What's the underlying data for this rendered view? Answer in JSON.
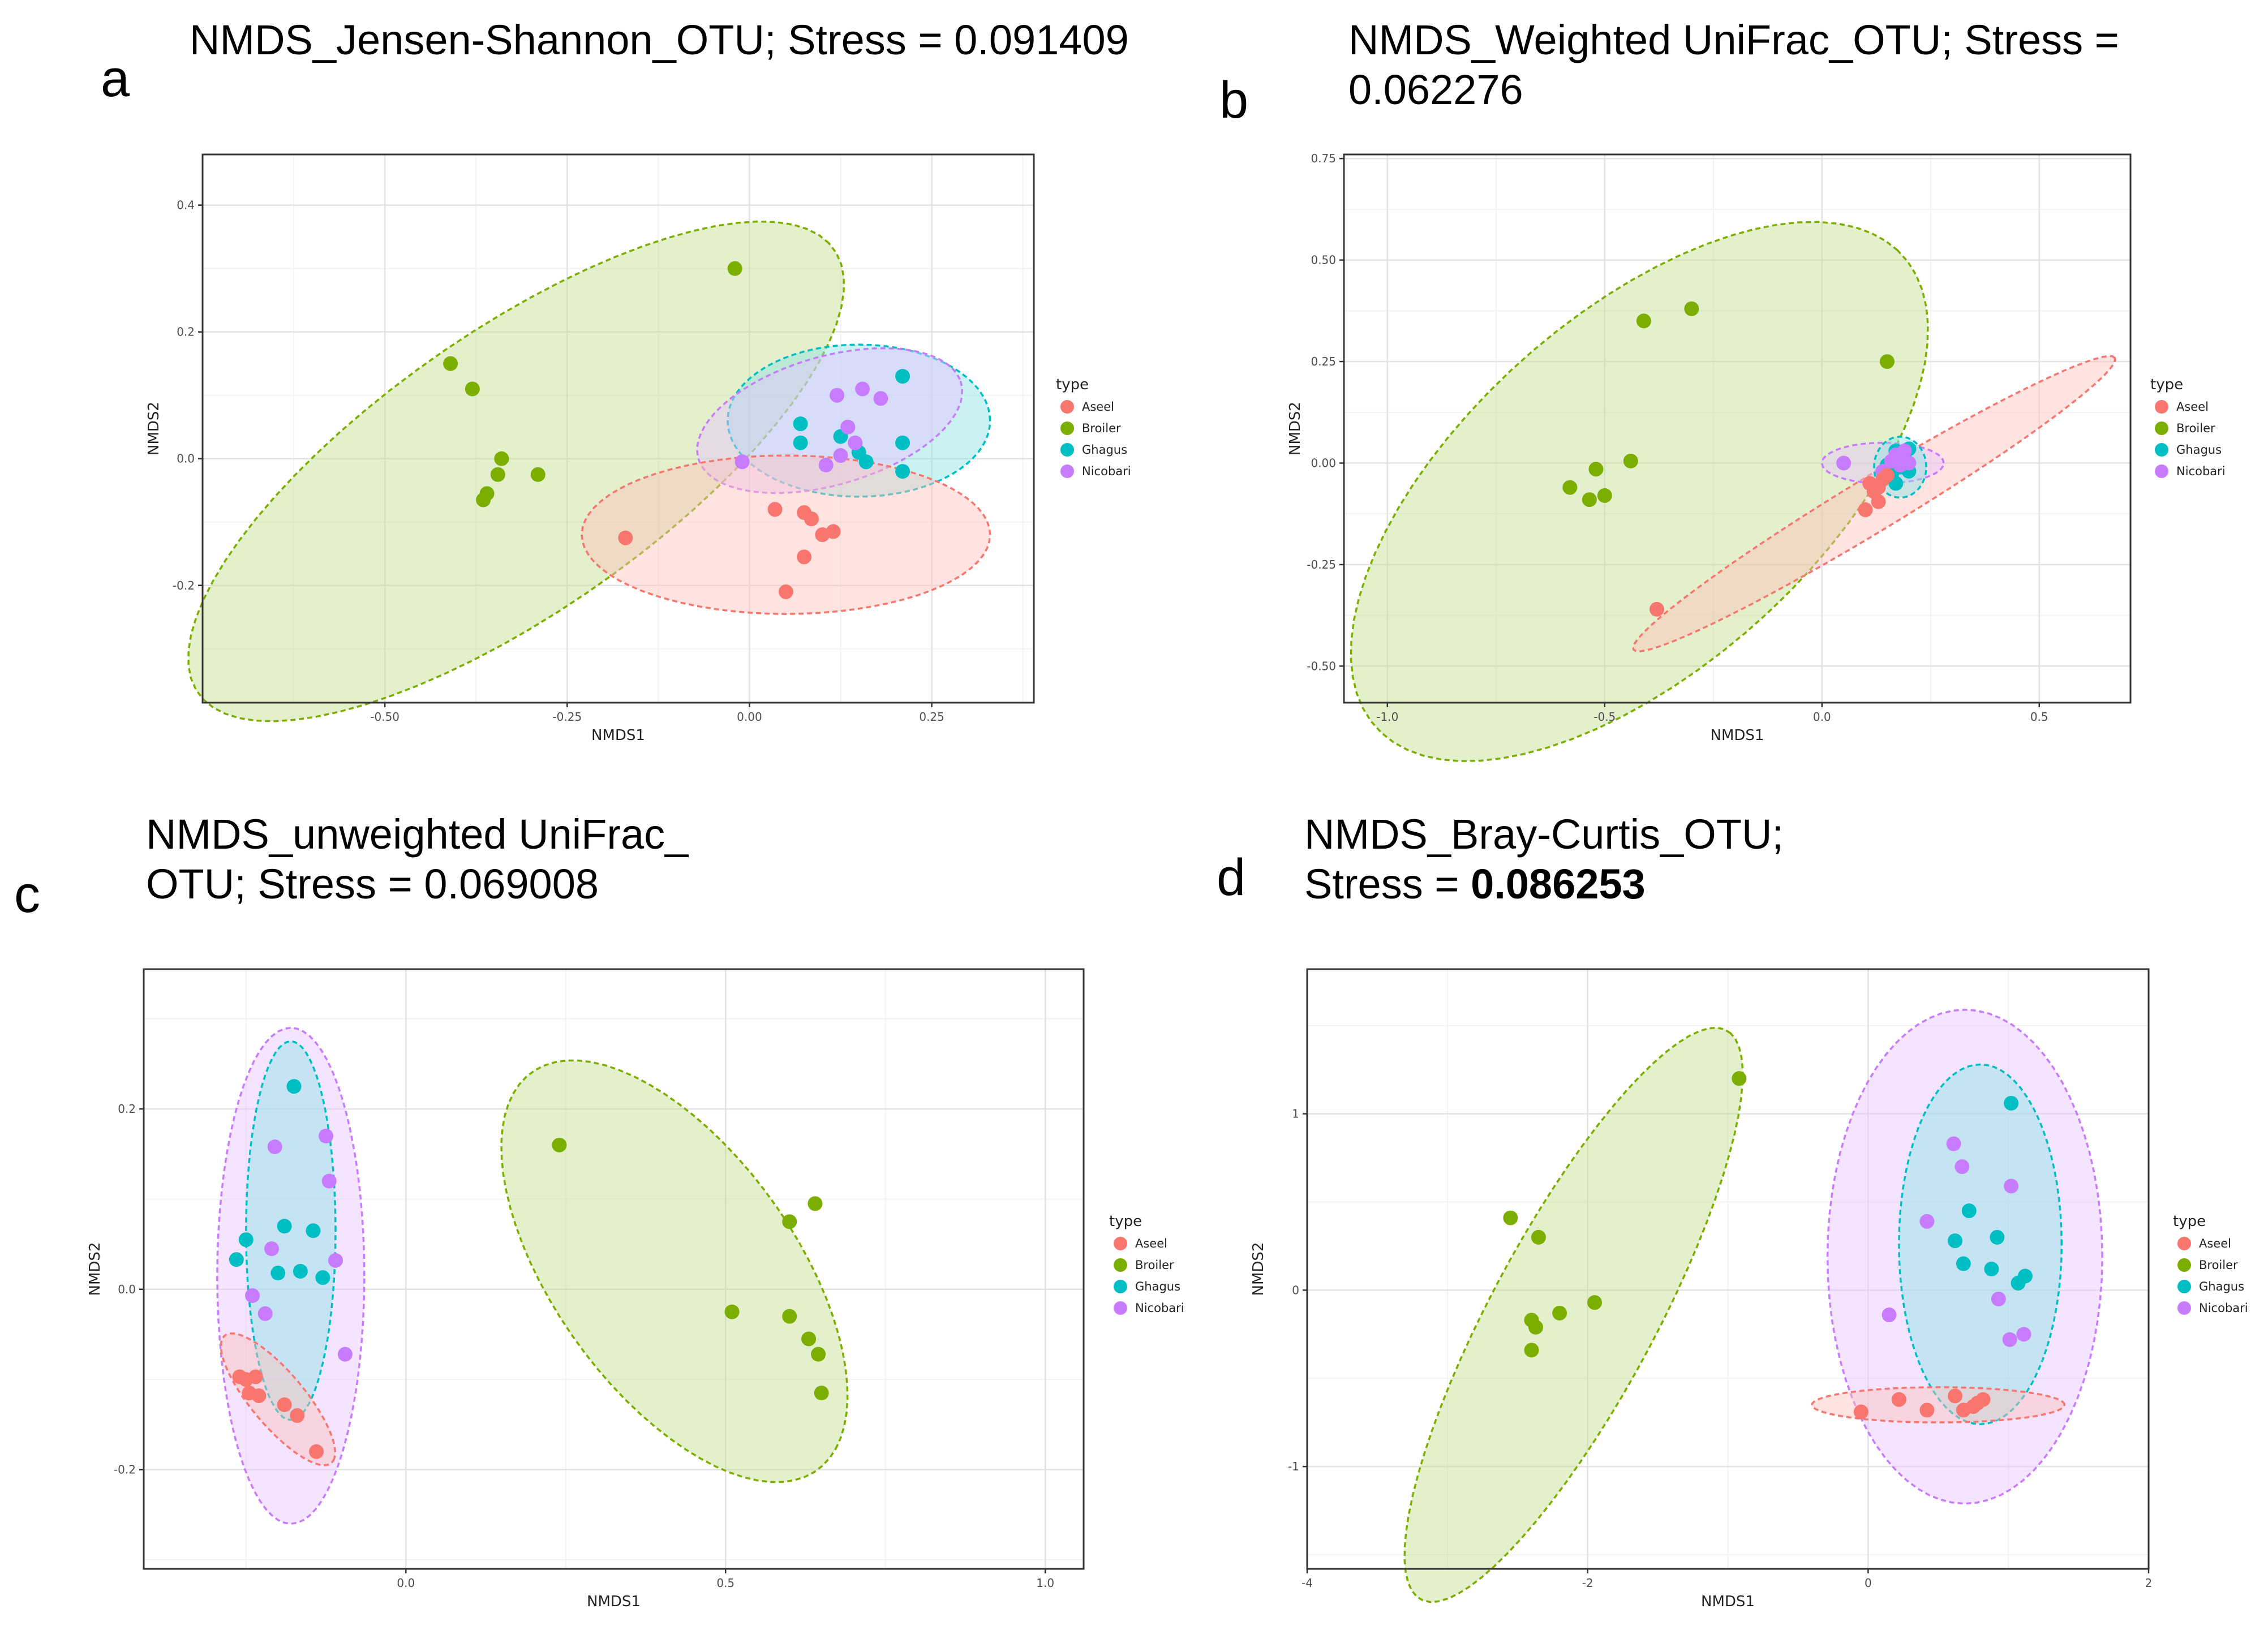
{
  "figure": {
    "panels": [
      {
        "letter": "a",
        "title_lines": [
          "NMDS_Jensen-Shannon_OTU; Stress = 0.091409"
        ],
        "bold_part": ""
      },
      {
        "letter": "b",
        "title_lines": [
          "NMDS_Weighted UniFrac_OTU; Stress =",
          "0.062276"
        ],
        "bold_part": ""
      },
      {
        "letter": "c",
        "title_lines": [
          "NMDS_unweighted UniFrac_",
          "OTU; Stress = 0.069008"
        ],
        "bold_part": ""
      },
      {
        "letter": "d",
        "title_lines": [
          "NMDS_Bray-Curtis_OTU;",
          "Stress = "
        ],
        "bold_part": "0.086253"
      }
    ]
  },
  "colors": {
    "Aseel": "#F8766D",
    "Broiler": "#7CAE00",
    "Ghagus": "#00BFC4",
    "Nicobari": "#C77CFF"
  },
  "chart_data": [
    {
      "type": "scatter",
      "title": "NMDS_Jensen-Shannon_OTU; Stress = 0.091409",
      "xlabel": "NMDS1",
      "ylabel": "NMDS2",
      "xlim": [
        -0.75,
        0.39
      ],
      "ylim": [
        -0.385,
        0.48
      ],
      "xticks": [
        -0.5,
        -0.25,
        0.0,
        0.25
      ],
      "xtick_labels": [
        "-0.50",
        "-0.25",
        "0.00",
        "0.25"
      ],
      "yticks": [
        -0.2,
        0.0,
        0.2,
        0.4
      ],
      "ytick_labels": [
        "-0.2",
        "0.0",
        "0.2",
        "0.4"
      ],
      "legend": {
        "title": "type",
        "entries": [
          "Aseel",
          "Broiler",
          "Ghagus",
          "Nicobari"
        ],
        "position": "right"
      },
      "series": [
        {
          "name": "Broiler",
          "points": [
            [
              -0.02,
              0.3
            ],
            [
              -0.41,
              0.15
            ],
            [
              -0.38,
              0.11
            ],
            [
              -0.34,
              0.0
            ],
            [
              -0.345,
              -0.025
            ],
            [
              -0.29,
              -0.025
            ],
            [
              -0.36,
              -0.055
            ],
            [
              -0.365,
              -0.065
            ]
          ]
        },
        {
          "name": "Ghagus",
          "points": [
            [
              0.21,
              0.13
            ],
            [
              0.07,
              0.055
            ],
            [
              0.125,
              0.035
            ],
            [
              0.07,
              0.025
            ],
            [
              0.21,
              0.025
            ],
            [
              0.15,
              0.01
            ],
            [
              0.16,
              -0.005
            ],
            [
              0.21,
              -0.02
            ]
          ]
        },
        {
          "name": "Nicobari",
          "points": [
            [
              0.12,
              0.1
            ],
            [
              0.155,
              0.11
            ],
            [
              0.18,
              0.095
            ],
            [
              0.135,
              0.05
            ],
            [
              0.145,
              0.025
            ],
            [
              0.125,
              0.005
            ],
            [
              0.105,
              -0.01
            ],
            [
              -0.01,
              -0.005
            ]
          ]
        },
        {
          "name": "Aseel",
          "points": [
            [
              -0.17,
              -0.125
            ],
            [
              0.035,
              -0.08
            ],
            [
              0.075,
              -0.085
            ],
            [
              0.085,
              -0.095
            ],
            [
              0.115,
              -0.115
            ],
            [
              0.1,
              -0.12
            ],
            [
              0.075,
              -0.155
            ],
            [
              0.05,
              -0.21
            ]
          ]
        }
      ],
      "ellipses": [
        {
          "name": "Broiler",
          "center": [
            -0.32,
            -0.02
          ],
          "axes": [
            0.56,
            0.21
          ],
          "angle": 40
        },
        {
          "name": "Ghagus",
          "center": [
            0.15,
            0.06
          ],
          "axes": [
            0.18,
            0.12
          ],
          "angle": 0
        },
        {
          "name": "Nicobari",
          "center": [
            0.11,
            0.06
          ],
          "axes": [
            0.19,
            0.1
          ],
          "angle": 20
        },
        {
          "name": "Aseel",
          "center": [
            0.05,
            -0.12
          ],
          "axes": [
            0.28,
            0.125
          ],
          "angle": 0
        }
      ]
    },
    {
      "type": "scatter",
      "title": "NMDS_Weighted UniFrac_OTU; Stress = 0.062276",
      "xlabel": "NMDS1",
      "ylabel": "NMDS2",
      "xlim": [
        -1.1,
        0.71
      ],
      "ylim": [
        -0.59,
        0.76
      ],
      "xticks": [
        -1.0,
        -0.5,
        0.0,
        0.5
      ],
      "xtick_labels": [
        "-1.0",
        "-0.5",
        "0.0",
        "0.5"
      ],
      "yticks": [
        -0.5,
        -0.25,
        0.0,
        0.25,
        0.5,
        0.75
      ],
      "ytick_labels": [
        "-0.50",
        "-0.25",
        "0.00",
        "0.25",
        "0.50",
        "0.75"
      ],
      "legend": {
        "title": "type",
        "entries": [
          "Aseel",
          "Broiler",
          "Ghagus",
          "Nicobari"
        ],
        "position": "right"
      },
      "series": [
        {
          "name": "Broiler",
          "points": [
            [
              -0.3,
              0.38
            ],
            [
              -0.41,
              0.35
            ],
            [
              0.15,
              0.25
            ],
            [
              -0.44,
              0.005
            ],
            [
              -0.52,
              -0.015
            ],
            [
              -0.58,
              -0.06
            ],
            [
              -0.5,
              -0.08
            ],
            [
              -0.535,
              -0.09
            ]
          ]
        },
        {
          "name": "Ghagus",
          "points": [
            [
              0.2,
              0.035
            ],
            [
              0.17,
              0.03
            ],
            [
              0.19,
              0.01
            ],
            [
              0.15,
              -0.005
            ],
            [
              0.18,
              -0.01
            ],
            [
              0.16,
              -0.03
            ],
            [
              0.17,
              -0.05
            ],
            [
              0.2,
              -0.02
            ]
          ]
        },
        {
          "name": "Nicobari",
          "points": [
            [
              0.05,
              0.0
            ],
            [
              0.17,
              0.02
            ],
            [
              0.19,
              0.03
            ],
            [
              0.16,
              0.005
            ],
            [
              0.18,
              -0.005
            ],
            [
              0.14,
              -0.02
            ],
            [
              0.2,
              0.0
            ],
            [
              0.175,
              0.015
            ]
          ]
        },
        {
          "name": "Aseel",
          "points": [
            [
              -0.38,
              -0.36
            ],
            [
              0.1,
              -0.115
            ],
            [
              0.13,
              -0.095
            ],
            [
              0.11,
              -0.05
            ],
            [
              0.14,
              -0.04
            ],
            [
              0.12,
              -0.07
            ],
            [
              0.15,
              -0.03
            ],
            [
              0.13,
              -0.06
            ]
          ]
        }
      ],
      "ellipses": [
        {
          "name": "Broiler",
          "center": [
            -0.42,
            -0.07
          ],
          "axes": [
            0.84,
            0.42
          ],
          "angle": 45
        },
        {
          "name": "Aseel",
          "center": [
            0.12,
            -0.1
          ],
          "axes": [
            0.66,
            0.065
          ],
          "angle": 33
        },
        {
          "name": "Nicobari",
          "center": [
            0.14,
            0.0
          ],
          "axes": [
            0.14,
            0.05
          ],
          "angle": 0
        },
        {
          "name": "Ghagus",
          "center": [
            0.18,
            -0.01
          ],
          "axes": [
            0.06,
            0.075
          ],
          "angle": 0
        }
      ]
    },
    {
      "type": "scatter",
      "title": "NMDS_unweighted UniFrac_OTU; Stress = 0.069008",
      "xlabel": "NMDS1",
      "ylabel": "NMDS2",
      "xlim": [
        -0.41,
        1.06
      ],
      "ylim": [
        -0.31,
        0.355
      ],
      "xticks": [
        0.0,
        0.5,
        1.0
      ],
      "xtick_labels": [
        "0.0",
        "0.5",
        "1.0"
      ],
      "yticks": [
        -0.2,
        0.0,
        0.2
      ],
      "ytick_labels": [
        "-0.2",
        "0.0",
        "0.2"
      ],
      "legend": {
        "title": "type",
        "entries": [
          "Aseel",
          "Broiler",
          "Ghagus",
          "Nicobari"
        ],
        "position": "right"
      },
      "series": [
        {
          "name": "Broiler",
          "points": [
            [
              0.24,
              0.16
            ],
            [
              0.64,
              0.095
            ],
            [
              0.6,
              0.075
            ],
            [
              0.51,
              -0.025
            ],
            [
              0.6,
              -0.03
            ],
            [
              0.63,
              -0.055
            ],
            [
              0.645,
              -0.072
            ],
            [
              0.65,
              -0.115
            ]
          ]
        },
        {
          "name": "Ghagus",
          "points": [
            [
              -0.175,
              0.225
            ],
            [
              -0.19,
              0.07
            ],
            [
              -0.145,
              0.065
            ],
            [
              -0.25,
              0.055
            ],
            [
              -0.265,
              0.033
            ],
            [
              -0.2,
              0.018
            ],
            [
              -0.165,
              0.02
            ],
            [
              -0.13,
              0.013
            ]
          ]
        },
        {
          "name": "Nicobari",
          "points": [
            [
              -0.125,
              0.17
            ],
            [
              -0.205,
              0.158
            ],
            [
              -0.12,
              0.12
            ],
            [
              -0.21,
              0.045
            ],
            [
              -0.11,
              0.032
            ],
            [
              -0.24,
              -0.007
            ],
            [
              -0.22,
              -0.027
            ],
            [
              -0.095,
              -0.072
            ]
          ]
        },
        {
          "name": "Aseel",
          "points": [
            [
              -0.26,
              -0.097
            ],
            [
              -0.235,
              -0.097
            ],
            [
              -0.245,
              -0.115
            ],
            [
              -0.23,
              -0.118
            ],
            [
              -0.19,
              -0.128
            ],
            [
              -0.17,
              -0.14
            ],
            [
              -0.14,
              -0.18
            ],
            [
              -0.25,
              -0.1
            ]
          ]
        }
      ],
      "ellipses": [
        {
          "name": "Broiler",
          "center": [
            0.42,
            0.02
          ],
          "axes": [
            0.32,
            0.16
          ],
          "angle": -38
        },
        {
          "name": "Nicobari",
          "center": [
            -0.18,
            0.015
          ],
          "axes": [
            0.115,
            0.275
          ],
          "angle": 0
        },
        {
          "name": "Ghagus",
          "center": [
            -0.18,
            0.065
          ],
          "axes": [
            0.07,
            0.21
          ],
          "angle": 0
        },
        {
          "name": "Aseel",
          "center": [
            -0.2,
            -0.122
          ],
          "axes": [
            0.11,
            0.035
          ],
          "angle": -38
        }
      ]
    },
    {
      "type": "scatter",
      "title": "NMDS_Bray-Curtis_OTU; Stress = 0.086253",
      "xlabel": "NMDS1",
      "ylabel": "NMDS2",
      "xlim": [
        -4.0,
        2.0
      ],
      "ylim": [
        -1.58,
        1.82
      ],
      "xticks": [
        -4,
        -2,
        0,
        2
      ],
      "xtick_labels": [
        "-4",
        "-2",
        "0",
        "2"
      ],
      "yticks": [
        -1,
        0,
        1
      ],
      "ytick_labels": [
        "-1",
        "0",
        "1"
      ],
      "legend": {
        "title": "type",
        "entries": [
          "Aseel",
          "Broiler",
          "Ghagus",
          "Nicobari"
        ],
        "position": "right"
      },
      "series": [
        {
          "name": "Broiler",
          "points": [
            [
              -0.92,
              1.2
            ],
            [
              -2.55,
              0.41
            ],
            [
              -2.35,
              0.3
            ],
            [
              -1.95,
              -0.07
            ],
            [
              -2.2,
              -0.13
            ],
            [
              -2.4,
              -0.17
            ],
            [
              -2.37,
              -0.21
            ],
            [
              -2.4,
              -0.34
            ]
          ]
        },
        {
          "name": "Ghagus",
          "points": [
            [
              1.02,
              1.06
            ],
            [
              0.72,
              0.45
            ],
            [
              0.92,
              0.3
            ],
            [
              0.62,
              0.28
            ],
            [
              0.68,
              0.15
            ],
            [
              0.88,
              0.12
            ],
            [
              1.12,
              0.08
            ],
            [
              1.07,
              0.04
            ]
          ]
        },
        {
          "name": "Nicobari",
          "points": [
            [
              0.61,
              0.83
            ],
            [
              0.67,
              0.7
            ],
            [
              1.02,
              0.59
            ],
            [
              0.42,
              0.39
            ],
            [
              0.93,
              -0.05
            ],
            [
              0.15,
              -0.14
            ],
            [
              1.11,
              -0.25
            ],
            [
              1.01,
              -0.28
            ]
          ]
        },
        {
          "name": "Aseel",
          "points": [
            [
              -0.05,
              -0.69
            ],
            [
              0.22,
              -0.62
            ],
            [
              0.42,
              -0.68
            ],
            [
              0.62,
              -0.6
            ],
            [
              0.68,
              -0.68
            ],
            [
              0.75,
              -0.66
            ],
            [
              0.82,
              -0.62
            ],
            [
              0.78,
              -0.64
            ]
          ]
        }
      ],
      "ellipses": [
        {
          "name": "Broiler",
          "center": [
            -2.1,
            -0.14
          ],
          "axes": [
            1.95,
            0.55
          ],
          "angle": 55
        },
        {
          "name": "Nicobari",
          "center": [
            0.69,
            0.19
          ],
          "axes": [
            0.98,
            1.4
          ],
          "angle": 0
        },
        {
          "name": "Ghagus",
          "center": [
            0.8,
            0.26
          ],
          "axes": [
            0.58,
            1.02
          ],
          "angle": 0
        },
        {
          "name": "Aseel",
          "center": [
            0.5,
            -0.65
          ],
          "axes": [
            0.9,
            0.1
          ],
          "angle": 0
        }
      ]
    }
  ]
}
